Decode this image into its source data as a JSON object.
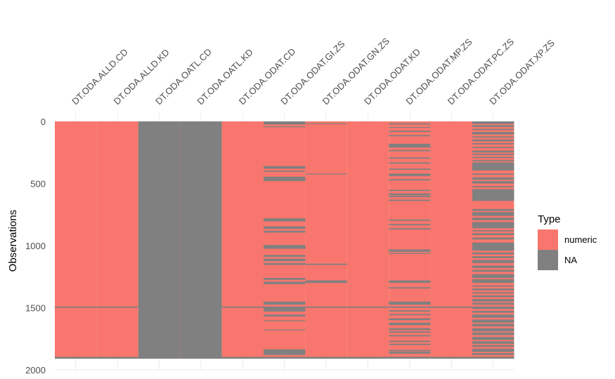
{
  "chart_data": {
    "type": "heatmap",
    "title": "",
    "xlabel": "",
    "ylabel": "Observations",
    "ylim": [
      0,
      2000
    ],
    "y_reversed": true,
    "y_ticks": [
      0,
      500,
      1000,
      1500,
      2000
    ],
    "x_labels_position": "top",
    "grid": true,
    "n_observations": 1910,
    "categories": [
      "DT.ODA.ALLD.CD",
      "DT.ODA.ALLD.KD",
      "DT.ODA.OATL.CD",
      "DT.ODA.OATL.KD",
      "DT.ODA.ODAT.CD",
      "DT.ODA.ODAT.GI.ZS",
      "DT.ODA.ODAT.GN.ZS",
      "DT.ODA.ODAT.KD",
      "DT.ODA.ODAT.MP.ZS",
      "DT.ODA.ODAT.PC.ZS",
      "DT.ODA.ODAT.XP.ZS"
    ],
    "legend": {
      "title": "Type",
      "position": "right",
      "entries": [
        {
          "label": "numeric",
          "color": "#F8766D"
        },
        {
          "label": "NA",
          "color": "#808080"
        }
      ]
    },
    "colors": {
      "numeric": "#F8766D",
      "NA": "#808080"
    },
    "na_ranges": [
      [
        [
          1490,
          1500
        ],
        [
          1895,
          1910
        ]
      ],
      [
        [
          1490,
          1500
        ],
        [
          1895,
          1910
        ]
      ],
      [
        [
          0,
          1910
        ]
      ],
      [
        [
          0,
          1910
        ]
      ],
      [
        [
          1490,
          1500
        ],
        [
          1895,
          1910
        ]
      ],
      [
        [
          0,
          25
        ],
        [
          40,
          45
        ],
        [
          360,
          380
        ],
        [
          395,
          405
        ],
        [
          445,
          480
        ],
        [
          780,
          805
        ],
        [
          845,
          865
        ],
        [
          880,
          895
        ],
        [
          995,
          1025
        ],
        [
          1075,
          1090
        ],
        [
          1105,
          1125
        ],
        [
          1140,
          1155
        ],
        [
          1260,
          1275
        ],
        [
          1290,
          1310
        ],
        [
          1450,
          1475
        ],
        [
          1490,
          1530
        ],
        [
          1555,
          1570
        ],
        [
          1600,
          1605
        ],
        [
          1675,
          1680
        ],
        [
          1835,
          1880
        ],
        [
          1895,
          1910
        ]
      ],
      [
        [
          15,
          20
        ],
        [
          420,
          425
        ],
        [
          1145,
          1155
        ],
        [
          1280,
          1300
        ],
        [
          1490,
          1500
        ],
        [
          1895,
          1910
        ]
      ],
      [
        [
          1490,
          1500
        ],
        [
          1895,
          1910
        ]
      ],
      [
        [
          15,
          25
        ],
        [
          45,
          50
        ],
        [
          75,
          85
        ],
        [
          110,
          120
        ],
        [
          180,
          210
        ],
        [
          230,
          240
        ],
        [
          290,
          300
        ],
        [
          330,
          340
        ],
        [
          380,
          390
        ],
        [
          420,
          440
        ],
        [
          465,
          475
        ],
        [
          550,
          560
        ],
        [
          580,
          595
        ],
        [
          600,
          610
        ],
        [
          630,
          640
        ],
        [
          790,
          800
        ],
        [
          825,
          835
        ],
        [
          860,
          870
        ],
        [
          1030,
          1050
        ],
        [
          1060,
          1065
        ],
        [
          1280,
          1300
        ],
        [
          1335,
          1345
        ],
        [
          1450,
          1475
        ],
        [
          1490,
          1500
        ],
        [
          1520,
          1530
        ],
        [
          1550,
          1560
        ],
        [
          1585,
          1600
        ],
        [
          1620,
          1640
        ],
        [
          1665,
          1680
        ],
        [
          1690,
          1700
        ],
        [
          1720,
          1730
        ],
        [
          1765,
          1775
        ],
        [
          1790,
          1800
        ],
        [
          1840,
          1850
        ],
        [
          1855,
          1870
        ],
        [
          1895,
          1910
        ]
      ],
      [
        [
          1490,
          1500
        ],
        [
          1895,
          1910
        ]
      ],
      [
        [
          0,
          20
        ],
        [
          30,
          45
        ],
        [
          60,
          70
        ],
        [
          85,
          105
        ],
        [
          120,
          130
        ],
        [
          145,
          160
        ],
        [
          175,
          185
        ],
        [
          205,
          215
        ],
        [
          235,
          250
        ],
        [
          260,
          270
        ],
        [
          285,
          295
        ],
        [
          310,
          320
        ],
        [
          330,
          395
        ],
        [
          420,
          430
        ],
        [
          450,
          470
        ],
        [
          480,
          500
        ],
        [
          520,
          530
        ],
        [
          545,
          640
        ],
        [
          705,
          720
        ],
        [
          730,
          760
        ],
        [
          775,
          795
        ],
        [
          810,
          860
        ],
        [
          875,
          885
        ],
        [
          900,
          915
        ],
        [
          935,
          950
        ],
        [
          975,
          1040
        ],
        [
          1055,
          1070
        ],
        [
          1085,
          1100
        ],
        [
          1115,
          1140
        ],
        [
          1160,
          1180
        ],
        [
          1195,
          1210
        ],
        [
          1230,
          1260
        ],
        [
          1270,
          1300
        ],
        [
          1320,
          1330
        ],
        [
          1345,
          1360
        ],
        [
          1375,
          1385
        ],
        [
          1400,
          1415
        ],
        [
          1430,
          1450
        ],
        [
          1460,
          1475
        ],
        [
          1490,
          1510
        ],
        [
          1525,
          1540
        ],
        [
          1555,
          1580
        ],
        [
          1595,
          1620
        ],
        [
          1630,
          1650
        ],
        [
          1665,
          1690
        ],
        [
          1700,
          1720
        ],
        [
          1735,
          1760
        ],
        [
          1770,
          1790
        ],
        [
          1800,
          1815
        ],
        [
          1830,
          1855
        ],
        [
          1865,
          1880
        ],
        [
          1895,
          1910
        ]
      ]
    ]
  }
}
